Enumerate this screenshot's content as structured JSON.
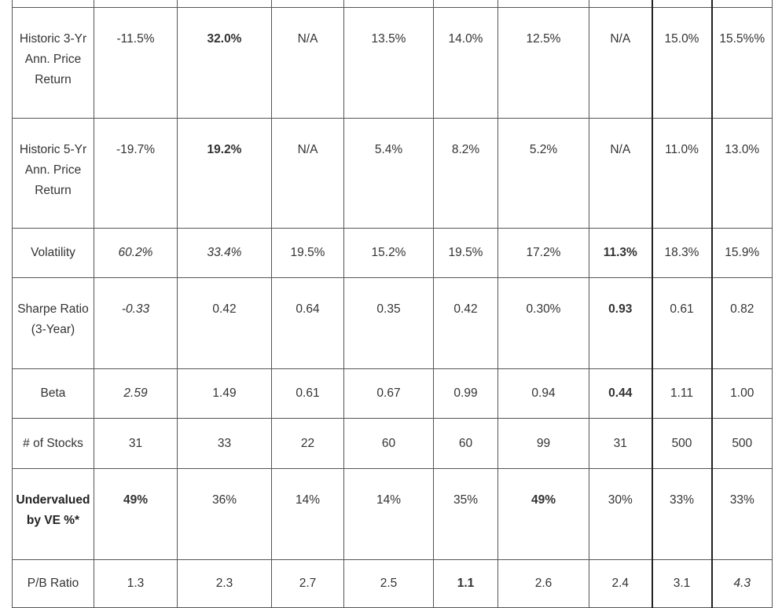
{
  "rows": [
    {
      "label": [
        "Historic 3-Yr",
        "Ann. Price",
        "Return"
      ],
      "values": [
        "-11.5%",
        "32.0%",
        "N/A",
        "13.5%",
        "14.0%",
        "12.5%",
        "N/A",
        "15.0%",
        "15.5%%"
      ]
    },
    {
      "label": [
        "Historic 5-Yr",
        "Ann. Price",
        "Return"
      ],
      "values": [
        "-19.7%",
        "19.2%",
        "N/A",
        "5.4%",
        "8.2%",
        "5.2%",
        "N/A",
        "11.0%",
        "13.0%"
      ]
    },
    {
      "label": [
        "Volatility"
      ],
      "values": [
        "60.2%",
        "33.4%",
        "19.5%",
        "15.2%",
        "19.5%",
        "17.2%",
        "11.3%",
        "18.3%",
        "15.9%"
      ]
    },
    {
      "label": [
        "Sharpe Ratio",
        "(3-Year)"
      ],
      "values": [
        "-0.33",
        "0.42",
        "0.64",
        "0.35",
        "0.42",
        "0.30%",
        "0.93",
        "0.61",
        "0.82"
      ]
    },
    {
      "label": [
        "Beta"
      ],
      "values": [
        "2.59",
        "1.49",
        "0.61",
        "0.67",
        "0.99",
        "0.94",
        "0.44",
        "1.11",
        "1.00"
      ]
    },
    {
      "label": [
        "# of Stocks"
      ],
      "values": [
        "31",
        "33",
        "22",
        "60",
        "60",
        "99",
        "31",
        "500",
        "500"
      ]
    },
    {
      "label": [
        "Undervalued",
        "by VE %*"
      ],
      "values": [
        "49%",
        "36%",
        "14%",
        "14%",
        "35%",
        "49%",
        "30%",
        "33%",
        "33%"
      ]
    },
    {
      "label": [
        "P/B Ratio"
      ],
      "values": [
        "1.3",
        "2.3",
        "2.7",
        "2.5",
        "1.1",
        "2.6",
        "2.4",
        "3.1",
        "4.3"
      ]
    }
  ]
}
